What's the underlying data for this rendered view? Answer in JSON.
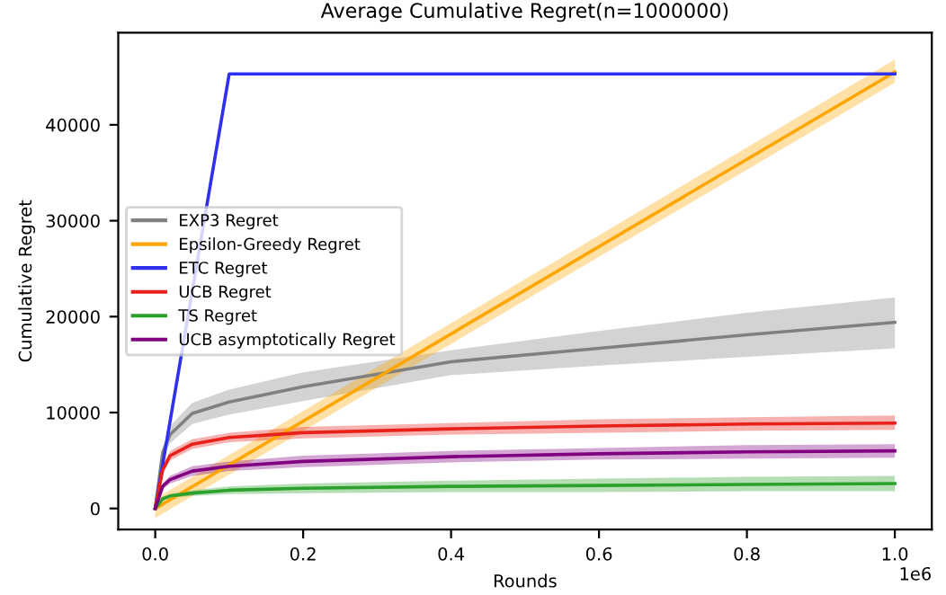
{
  "chart_data": {
    "type": "line",
    "title": "Average Cumulative Regret(n=1000000)",
    "xlabel": "Rounds",
    "ylabel": "Cumulative Regret",
    "annotations": [
      "1e6"
    ],
    "xlim": [
      -0.05,
      1.05
    ],
    "ylim": [
      -2200,
      49600
    ],
    "xticks": [
      {
        "value": 0,
        "label": "0.0"
      },
      0.2,
      0.4,
      0.6,
      0.8,
      {
        "value": 1,
        "label": "1.0"
      }
    ],
    "yticks": [
      0,
      10000,
      20000,
      30000,
      40000
    ],
    "grid": false,
    "legend": "left",
    "marker": "none",
    "line_style": "solid",
    "series": [
      {
        "name": "EXP3 Regret",
        "color": "#808080",
        "x": [
          0,
          0.01,
          0.02,
          0.05,
          0.1,
          0.2,
          0.4,
          0.6,
          0.8,
          1.0
        ],
        "values": [
          0,
          5800,
          7700,
          9900,
          11100,
          12700,
          15300,
          16700,
          18100,
          19400
        ],
        "lower": [
          0,
          5200,
          6800,
          8800,
          9800,
          11200,
          13900,
          14900,
          15800,
          16700
        ],
        "upper": [
          0,
          6400,
          8600,
          11000,
          12400,
          14200,
          16500,
          18500,
          20400,
          22000
        ]
      },
      {
        "name": "Epsilon-Greedy Regret",
        "color": "#ffa500",
        "x": [
          0,
          1.0
        ],
        "values": [
          0,
          45500
        ],
        "lower": [
          -1000,
          44400
        ],
        "upper": [
          1000,
          46800
        ]
      },
      {
        "name": "ETC Regret",
        "color": "#3030f0",
        "x": [
          0,
          0.1,
          1.0
        ],
        "values": [
          0,
          45300,
          45300
        ]
      },
      {
        "name": "UCB Regret",
        "color": "#e8201a",
        "x": [
          0,
          0.01,
          0.02,
          0.05,
          0.1,
          0.2,
          0.4,
          0.6,
          0.8,
          1.0
        ],
        "values": [
          0,
          4000,
          5500,
          6700,
          7400,
          7900,
          8300,
          8600,
          8800,
          8900
        ],
        "lower": [
          0,
          3600,
          5000,
          6200,
          6900,
          7300,
          7700,
          7900,
          8100,
          8200
        ],
        "upper": [
          0,
          4400,
          6000,
          7200,
          7900,
          8500,
          8900,
          9300,
          9500,
          9700
        ]
      },
      {
        "name": "TS Regret",
        "color": "#2ca02c",
        "x": [
          0,
          0.01,
          0.02,
          0.05,
          0.1,
          0.2,
          0.4,
          0.6,
          0.8,
          1.0
        ],
        "values": [
          0,
          1000,
          1300,
          1600,
          1900,
          2100,
          2300,
          2400,
          2500,
          2600
        ],
        "lower": [
          0,
          800,
          1100,
          1300,
          1500,
          1600,
          1700,
          1700,
          1800,
          1800
        ],
        "upper": [
          0,
          1200,
          1500,
          1900,
          2300,
          2600,
          2900,
          3100,
          3300,
          3400
        ]
      },
      {
        "name": "UCB asymptotically Regret",
        "color": "#800080",
        "x": [
          0,
          0.01,
          0.02,
          0.05,
          0.1,
          0.2,
          0.4,
          0.6,
          0.8,
          1.0
        ],
        "values": [
          0,
          2300,
          3000,
          3900,
          4400,
          4900,
          5400,
          5700,
          5900,
          6000
        ],
        "lower": [
          0,
          2000,
          2600,
          3400,
          3900,
          4300,
          4800,
          5100,
          5200,
          5300
        ],
        "upper": [
          0,
          2600,
          3400,
          4400,
          4900,
          5500,
          6000,
          6300,
          6600,
          6700
        ]
      }
    ]
  }
}
